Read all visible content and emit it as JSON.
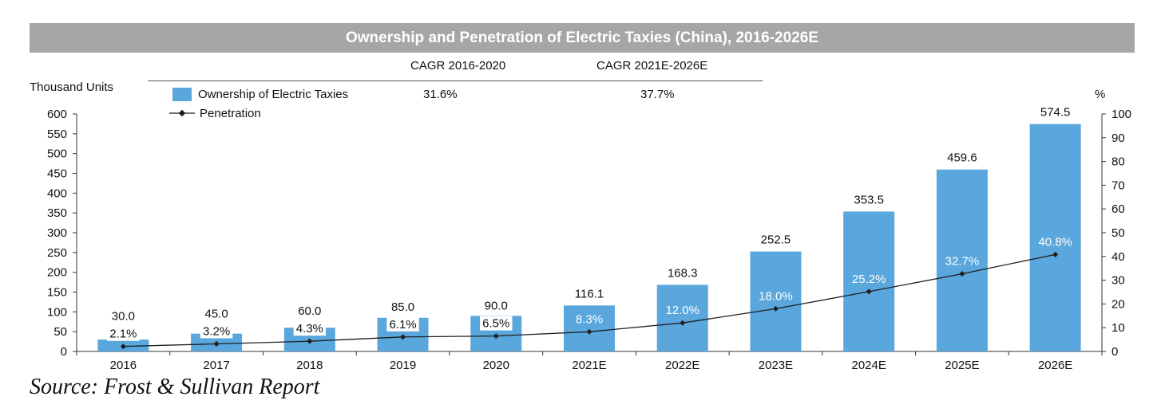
{
  "chart_data": {
    "type": "bar",
    "title": "Ownership and Penetration of Electric Taxies (China), 2016-2026E",
    "categories": [
      "2016",
      "2017",
      "2018",
      "2019",
      "2020",
      "2021E",
      "2022E",
      "2023E",
      "2024E",
      "2025E",
      "2026E"
    ],
    "series": [
      {
        "name": "Ownership of Electric Taxies",
        "type": "bar",
        "axis": "left",
        "values": [
          30.0,
          45.0,
          60.0,
          85.0,
          90.0,
          116.1,
          168.3,
          252.5,
          353.5,
          459.6,
          574.5
        ],
        "labels": [
          "30.0",
          "45.0",
          "60.0",
          "85.0",
          "90.0",
          "116.1",
          "168.3",
          "252.5",
          "353.5",
          "459.6",
          "574.5"
        ]
      },
      {
        "name": "Penetration",
        "type": "line",
        "axis": "right",
        "values": [
          2.1,
          3.2,
          4.3,
          6.1,
          6.5,
          8.3,
          12.0,
          18.0,
          25.2,
          32.7,
          40.8
        ],
        "labels": [
          "2.1%",
          "3.2%",
          "4.3%",
          "6.1%",
          "6.5%",
          "8.3%",
          "12.0%",
          "18.0%",
          "25.2%",
          "32.7%",
          "40.8%"
        ]
      }
    ],
    "ylabel_left": "Thousand Units",
    "ylabel_right": "%",
    "ylim_left": [
      0,
      600
    ],
    "ylim_right": [
      0,
      100
    ],
    "yticks_left": [
      "0",
      "50",
      "100",
      "150",
      "200",
      "250",
      "300",
      "350",
      "400",
      "450",
      "500",
      "550",
      "600"
    ],
    "yticks_right": [
      "0",
      "10",
      "20",
      "30",
      "40",
      "50",
      "60",
      "70",
      "80",
      "90",
      "100"
    ],
    "grid": false,
    "legend_position": "top-left",
    "cagr_table": {
      "headers": [
        "CAGR 2016-2020",
        "CAGR 2021E-2026E"
      ],
      "values": [
        "31.6%",
        "37.7%"
      ]
    },
    "colors": {
      "bar": "#5aa7dd",
      "line": "#1f1f1f",
      "title_bg": "#a6a6a6",
      "title_text": "#ffffff"
    }
  },
  "source": "Source: Frost & Sullivan Report"
}
